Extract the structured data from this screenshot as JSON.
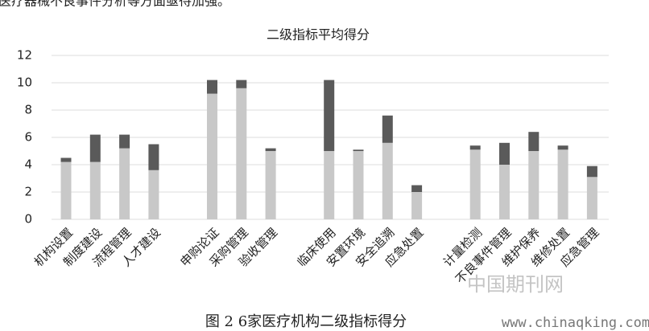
{
  "header_text": "医疗器械不良事件分析等方面亟待加强。",
  "chart_data": {
    "type": "bar",
    "stacked": true,
    "title": "二级指标平均得分",
    "categories": [
      "机构设置",
      "制度建设",
      "流程管理",
      "人才建设",
      null,
      "申购论证",
      "采购管理",
      "验收管理",
      null,
      "临床使用",
      "安置环境",
      "安全追溯",
      "应急处置",
      null,
      "计量检测",
      "不良事件管理",
      "维护保养",
      "维修处置",
      "应急管理"
    ],
    "series": [
      {
        "color": "#c8c8c8",
        "values": [
          4.2,
          4.2,
          5.2,
          3.6,
          null,
          9.2,
          9.6,
          5.0,
          null,
          5.0,
          5.0,
          5.6,
          2.0,
          null,
          5.1,
          4.0,
          5.0,
          5.1,
          3.1
        ]
      },
      {
        "color": "#5a5a5a",
        "values": [
          0.3,
          2.0,
          1.0,
          1.9,
          null,
          1.0,
          0.6,
          0.2,
          null,
          5.2,
          0.1,
          2.0,
          0.5,
          null,
          0.3,
          1.6,
          1.4,
          0.3,
          0.8
        ]
      }
    ],
    "ylim": [
      0,
      12
    ],
    "yticks": [
      0,
      2,
      4,
      6,
      8,
      10,
      12
    ],
    "grid": true
  },
  "caption": "图 2 6家医疗机构二级指标得分",
  "watermark": {
    "name": "中国期刊网",
    "url": "www.chinaqking.com"
  }
}
